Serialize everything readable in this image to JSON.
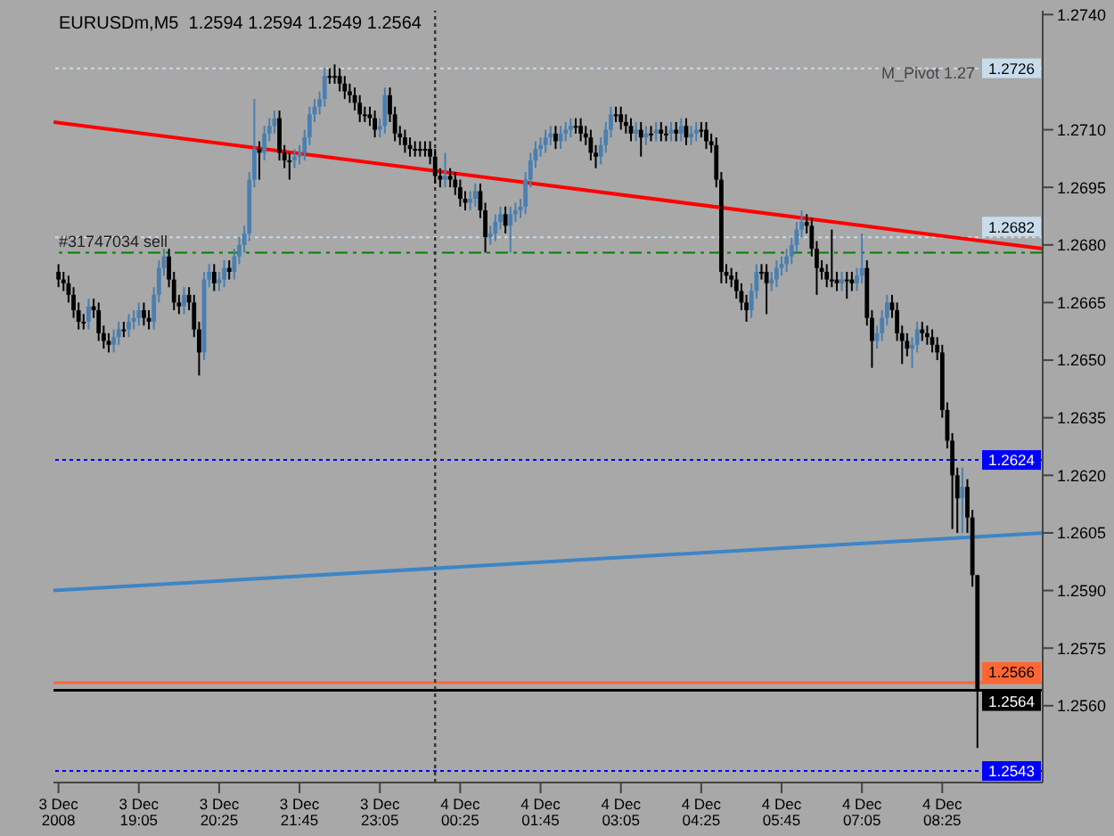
{
  "chart_data": {
    "type": "candlestick",
    "title": "EURUSDm,M5  1.2594 1.2594 1.2549 1.2564",
    "x": [
      "2008-12-03T17:45",
      "2008-12-03T17:50",
      "2008-12-03T17:55",
      "2008-12-03T18:00",
      "2008-12-03T18:05",
      "2008-12-03T18:10",
      "2008-12-03T18:15",
      "2008-12-03T18:20",
      "2008-12-03T18:25",
      "2008-12-03T18:30",
      "2008-12-03T18:35",
      "2008-12-03T18:40",
      "2008-12-03T18:45",
      "2008-12-03T18:50",
      "2008-12-03T18:55",
      "2008-12-03T19:00",
      "2008-12-03T19:05",
      "2008-12-03T19:10",
      "2008-12-03T19:15",
      "2008-12-03T19:20",
      "2008-12-03T19:25",
      "2008-12-03T19:30",
      "2008-12-03T19:35",
      "2008-12-03T19:40",
      "2008-12-03T19:45",
      "2008-12-03T19:50",
      "2008-12-03T19:55",
      "2008-12-03T20:00",
      "2008-12-03T20:05",
      "2008-12-03T20:10",
      "2008-12-03T20:15",
      "2008-12-03T20:20",
      "2008-12-03T20:25",
      "2008-12-03T20:30",
      "2008-12-03T20:35",
      "2008-12-03T20:40",
      "2008-12-03T20:45",
      "2008-12-03T20:50",
      "2008-12-03T20:55",
      "2008-12-03T21:00",
      "2008-12-03T21:05",
      "2008-12-03T21:10",
      "2008-12-03T21:15",
      "2008-12-03T21:20",
      "2008-12-03T21:25",
      "2008-12-03T21:30",
      "2008-12-03T21:35",
      "2008-12-03T21:40",
      "2008-12-03T21:45",
      "2008-12-03T21:50",
      "2008-12-03T21:55",
      "2008-12-03T22:00",
      "2008-12-03T22:05",
      "2008-12-03T22:10",
      "2008-12-03T22:15",
      "2008-12-03T22:20",
      "2008-12-03T22:25",
      "2008-12-03T22:30",
      "2008-12-03T22:35",
      "2008-12-03T22:40",
      "2008-12-03T22:45",
      "2008-12-03T22:50",
      "2008-12-03T22:55",
      "2008-12-03T23:00",
      "2008-12-03T23:05",
      "2008-12-03T23:10",
      "2008-12-03T23:15",
      "2008-12-03T23:20",
      "2008-12-03T23:25",
      "2008-12-03T23:30",
      "2008-12-03T23:35",
      "2008-12-03T23:40",
      "2008-12-03T23:45",
      "2008-12-03T23:50",
      "2008-12-03T23:55",
      "2008-12-04T00:00",
      "2008-12-04T00:05",
      "2008-12-04T00:10",
      "2008-12-04T00:15",
      "2008-12-04T00:20",
      "2008-12-04T00:25",
      "2008-12-04T00:30",
      "2008-12-04T00:35",
      "2008-12-04T00:40",
      "2008-12-04T00:45",
      "2008-12-04T00:50",
      "2008-12-04T00:55",
      "2008-12-04T01:00",
      "2008-12-04T01:05",
      "2008-12-04T01:10",
      "2008-12-04T01:15",
      "2008-12-04T01:20",
      "2008-12-04T01:25",
      "2008-12-04T01:30",
      "2008-12-04T01:35",
      "2008-12-04T01:40",
      "2008-12-04T01:45",
      "2008-12-04T01:50",
      "2008-12-04T01:55",
      "2008-12-04T02:00",
      "2008-12-04T02:05",
      "2008-12-04T02:10",
      "2008-12-04T02:15",
      "2008-12-04T02:20",
      "2008-12-04T02:25",
      "2008-12-04T02:30",
      "2008-12-04T02:35",
      "2008-12-04T02:40",
      "2008-12-04T02:45",
      "2008-12-04T02:50",
      "2008-12-04T02:55",
      "2008-12-04T03:00",
      "2008-12-04T03:05",
      "2008-12-04T03:10",
      "2008-12-04T03:15",
      "2008-12-04T03:20",
      "2008-12-04T03:25",
      "2008-12-04T03:30",
      "2008-12-04T03:35",
      "2008-12-04T03:40",
      "2008-12-04T03:45",
      "2008-12-04T03:50",
      "2008-12-04T03:55",
      "2008-12-04T04:00",
      "2008-12-04T04:05",
      "2008-12-04T04:10",
      "2008-12-04T04:15",
      "2008-12-04T04:20",
      "2008-12-04T04:25",
      "2008-12-04T04:30",
      "2008-12-04T04:35",
      "2008-12-04T04:40",
      "2008-12-04T04:45",
      "2008-12-04T04:50",
      "2008-12-04T04:55",
      "2008-12-04T05:00",
      "2008-12-04T05:05",
      "2008-12-04T05:10",
      "2008-12-04T05:15",
      "2008-12-04T05:20",
      "2008-12-04T05:25",
      "2008-12-04T05:30",
      "2008-12-04T05:35",
      "2008-12-04T05:40",
      "2008-12-04T05:45",
      "2008-12-04T05:50",
      "2008-12-04T05:55",
      "2008-12-04T06:00",
      "2008-12-04T06:05",
      "2008-12-04T06:10",
      "2008-12-04T06:15",
      "2008-12-04T06:20",
      "2008-12-04T06:25",
      "2008-12-04T06:30",
      "2008-12-04T06:35",
      "2008-12-04T06:40",
      "2008-12-04T06:45",
      "2008-12-04T06:50",
      "2008-12-04T06:55",
      "2008-12-04T07:00",
      "2008-12-04T07:05",
      "2008-12-04T07:10",
      "2008-12-04T07:15",
      "2008-12-04T07:20",
      "2008-12-04T07:25",
      "2008-12-04T07:30",
      "2008-12-04T07:35",
      "2008-12-04T07:40",
      "2008-12-04T07:45",
      "2008-12-04T07:50",
      "2008-12-04T07:55",
      "2008-12-04T08:00",
      "2008-12-04T08:05",
      "2008-12-04T08:10",
      "2008-12-04T08:15",
      "2008-12-04T08:20",
      "2008-12-04T08:25",
      "2008-12-04T08:30",
      "2008-12-04T08:35",
      "2008-12-04T08:40",
      "2008-12-04T08:45",
      "2008-12-04T08:50",
      "2008-12-04T08:55",
      "2008-12-04T09:00"
    ],
    "ohlc": [
      [
        1.2673,
        1.2675,
        1.2669,
        1.2671
      ],
      [
        1.2671,
        1.2673,
        1.2668,
        1.267
      ],
      [
        1.267,
        1.2672,
        1.2665,
        1.2667
      ],
      [
        1.2667,
        1.2669,
        1.2661,
        1.2663
      ],
      [
        1.2663,
        1.2665,
        1.2658,
        1.266
      ],
      [
        1.266,
        1.2662,
        1.2658,
        1.266
      ],
      [
        1.266,
        1.2666,
        1.2658,
        1.2664
      ],
      [
        1.2664,
        1.2666,
        1.2661,
        1.2663
      ],
      [
        1.2663,
        1.2665,
        1.2655,
        1.2657
      ],
      [
        1.2657,
        1.2659,
        1.2653,
        1.2655
      ],
      [
        1.2655,
        1.2657,
        1.2652,
        1.2654
      ],
      [
        1.2654,
        1.2658,
        1.2652,
        1.2656
      ],
      [
        1.2656,
        1.266,
        1.2654,
        1.2658
      ],
      [
        1.2658,
        1.266,
        1.2656,
        1.2658
      ],
      [
        1.2658,
        1.2662,
        1.2656,
        1.266
      ],
      [
        1.266,
        1.2663,
        1.2658,
        1.2661
      ],
      [
        1.2661,
        1.2665,
        1.2659,
        1.2663
      ],
      [
        1.2663,
        1.2665,
        1.2659,
        1.2661
      ],
      [
        1.2661,
        1.2663,
        1.2658,
        1.266
      ],
      [
        1.266,
        1.2669,
        1.2658,
        1.2667
      ],
      [
        1.2667,
        1.2676,
        1.2665,
        1.2674
      ],
      [
        1.2674,
        1.2679,
        1.2672,
        1.2677
      ],
      [
        1.2677,
        1.2679,
        1.2669,
        1.2671
      ],
      [
        1.2671,
        1.2673,
        1.2663,
        1.2665
      ],
      [
        1.2665,
        1.2667,
        1.2662,
        1.2664
      ],
      [
        1.2664,
        1.2669,
        1.2662,
        1.2667
      ],
      [
        1.2667,
        1.2669,
        1.2663,
        1.2665
      ],
      [
        1.2665,
        1.2667,
        1.2656,
        1.2658
      ],
      [
        1.2658,
        1.266,
        1.2646,
        1.2652
      ],
      [
        1.2652,
        1.2673,
        1.265,
        1.2671
      ],
      [
        1.2671,
        1.2675,
        1.2669,
        1.2673
      ],
      [
        1.2673,
        1.2675,
        1.2668,
        1.267
      ],
      [
        1.267,
        1.2673,
        1.2668,
        1.2671
      ],
      [
        1.2671,
        1.2676,
        1.2669,
        1.2674
      ],
      [
        1.2674,
        1.2676,
        1.2671,
        1.2673
      ],
      [
        1.2673,
        1.2679,
        1.2671,
        1.2677
      ],
      [
        1.2677,
        1.2682,
        1.2675,
        1.268
      ],
      [
        1.268,
        1.2685,
        1.2678,
        1.2683
      ],
      [
        1.2683,
        1.2699,
        1.2681,
        1.2697
      ],
      [
        1.2697,
        1.2718,
        1.2695,
        1.2705
      ],
      [
        1.2705,
        1.2707,
        1.2697,
        1.2704
      ],
      [
        1.2704,
        1.2711,
        1.2702,
        1.2709
      ],
      [
        1.2709,
        1.2713,
        1.2707,
        1.2711
      ],
      [
        1.2711,
        1.2715,
        1.2709,
        1.2713
      ],
      [
        1.2713,
        1.2715,
        1.2702,
        1.2704
      ],
      [
        1.2704,
        1.2706,
        1.27,
        1.2702
      ],
      [
        1.2702,
        1.2704,
        1.2697,
        1.2702
      ],
      [
        1.2702,
        1.2705,
        1.27,
        1.2703
      ],
      [
        1.2703,
        1.2706,
        1.2701,
        1.2704
      ],
      [
        1.2704,
        1.271,
        1.2702,
        1.2708
      ],
      [
        1.2708,
        1.2716,
        1.2706,
        1.2714
      ],
      [
        1.2714,
        1.2718,
        1.2712,
        1.2716
      ],
      [
        1.2716,
        1.272,
        1.2714,
        1.2718
      ],
      [
        1.2718,
        1.2726,
        1.2716,
        1.2724
      ],
      [
        1.2724,
        1.2726,
        1.2722,
        1.2724
      ],
      [
        1.2724,
        1.2727,
        1.2722,
        1.2724
      ],
      [
        1.2724,
        1.2726,
        1.272,
        1.2722
      ],
      [
        1.2722,
        1.2724,
        1.2718,
        1.272
      ],
      [
        1.272,
        1.2722,
        1.2717,
        1.2719
      ],
      [
        1.2719,
        1.2721,
        1.2715,
        1.2717
      ],
      [
        1.2717,
        1.2719,
        1.2712,
        1.2714
      ],
      [
        1.2714,
        1.2716,
        1.2712,
        1.2714
      ],
      [
        1.2714,
        1.2716,
        1.2711,
        1.2713
      ],
      [
        1.2713,
        1.2715,
        1.2708,
        1.271
      ],
      [
        1.271,
        1.2713,
        1.2708,
        1.2711
      ],
      [
        1.2711,
        1.2721,
        1.2709,
        1.2719
      ],
      [
        1.2719,
        1.2721,
        1.2712,
        1.2714
      ],
      [
        1.2714,
        1.2716,
        1.2707,
        1.2709
      ],
      [
        1.2709,
        1.2711,
        1.2706,
        1.2708
      ],
      [
        1.2708,
        1.271,
        1.2704,
        1.2706
      ],
      [
        1.2706,
        1.2708,
        1.2703,
        1.2705
      ],
      [
        1.2705,
        1.2707,
        1.2703,
        1.2705
      ],
      [
        1.2705,
        1.2707,
        1.2703,
        1.2705
      ],
      [
        1.2705,
        1.2707,
        1.2703,
        1.2705
      ],
      [
        1.2705,
        1.2707,
        1.2701,
        1.2703
      ],
      [
        1.2703,
        1.2705,
        1.2696,
        1.2698
      ],
      [
        1.2698,
        1.27,
        1.2695,
        1.2697
      ],
      [
        1.2697,
        1.2704,
        1.2695,
        1.2698
      ],
      [
        1.2698,
        1.27,
        1.2695,
        1.2697
      ],
      [
        1.2697,
        1.2699,
        1.2693,
        1.2695
      ],
      [
        1.2695,
        1.2697,
        1.269,
        1.2692
      ],
      [
        1.2692,
        1.2694,
        1.2689,
        1.2691
      ],
      [
        1.2691,
        1.2694,
        1.2689,
        1.2692
      ],
      [
        1.2692,
        1.2696,
        1.269,
        1.2694
      ],
      [
        1.2694,
        1.2696,
        1.2687,
        1.2689
      ],
      [
        1.2689,
        1.2691,
        1.2678,
        1.2682
      ],
      [
        1.2682,
        1.2685,
        1.268,
        1.2683
      ],
      [
        1.2683,
        1.2688,
        1.2681,
        1.2686
      ],
      [
        1.2686,
        1.269,
        1.2684,
        1.2688
      ],
      [
        1.2688,
        1.269,
        1.2683,
        1.2685
      ],
      [
        1.2685,
        1.269,
        1.2678,
        1.2688
      ],
      [
        1.2688,
        1.2691,
        1.2686,
        1.2689
      ],
      [
        1.2689,
        1.2692,
        1.2687,
        1.269
      ],
      [
        1.269,
        1.2699,
        1.2688,
        1.2697
      ],
      [
        1.2697,
        1.2704,
        1.2695,
        1.2702
      ],
      [
        1.2702,
        1.2707,
        1.27,
        1.2705
      ],
      [
        1.2705,
        1.2708,
        1.2703,
        1.2706
      ],
      [
        1.2706,
        1.271,
        1.2704,
        1.2708
      ],
      [
        1.2708,
        1.2711,
        1.2706,
        1.2709
      ],
      [
        1.2709,
        1.2711,
        1.2705,
        1.2707
      ],
      [
        1.2707,
        1.2711,
        1.2705,
        1.2709
      ],
      [
        1.2709,
        1.2712,
        1.2707,
        1.271
      ],
      [
        1.271,
        1.2713,
        1.2708,
        1.2711
      ],
      [
        1.2711,
        1.2713,
        1.2709,
        1.2711
      ],
      [
        1.2711,
        1.2713,
        1.2707,
        1.2709
      ],
      [
        1.2709,
        1.2711,
        1.2706,
        1.2708
      ],
      [
        1.2708,
        1.271,
        1.2702,
        1.2704
      ],
      [
        1.2704,
        1.2706,
        1.27,
        1.2703
      ],
      [
        1.2703,
        1.2708,
        1.2701,
        1.2706
      ],
      [
        1.2706,
        1.2712,
        1.2704,
        1.271
      ],
      [
        1.271,
        1.2716,
        1.2708,
        1.2714
      ],
      [
        1.2714,
        1.2716,
        1.2712,
        1.2714
      ],
      [
        1.2714,
        1.2716,
        1.271,
        1.2712
      ],
      [
        1.2712,
        1.2714,
        1.2709,
        1.2711
      ],
      [
        1.2711,
        1.2713,
        1.2707,
        1.2709
      ],
      [
        1.2709,
        1.2712,
        1.2707,
        1.271
      ],
      [
        1.271,
        1.2712,
        1.2703,
        1.2708
      ],
      [
        1.2708,
        1.2711,
        1.2706,
        1.2709
      ],
      [
        1.2709,
        1.2711,
        1.2707,
        1.2709
      ],
      [
        1.2709,
        1.2712,
        1.2707,
        1.271
      ],
      [
        1.271,
        1.2712,
        1.2707,
        1.2709
      ],
      [
        1.2709,
        1.2711,
        1.2707,
        1.2709
      ],
      [
        1.2709,
        1.2712,
        1.2707,
        1.271
      ],
      [
        1.271,
        1.2712,
        1.2707,
        1.2709
      ],
      [
        1.2709,
        1.2713,
        1.2707,
        1.2711
      ],
      [
        1.2711,
        1.2713,
        1.2706,
        1.2708
      ],
      [
        1.2708,
        1.2711,
        1.2706,
        1.2709
      ],
      [
        1.2709,
        1.2712,
        1.2707,
        1.271
      ],
      [
        1.271,
        1.2712,
        1.2708,
        1.271
      ],
      [
        1.271,
        1.2712,
        1.2705,
        1.2707
      ],
      [
        1.2707,
        1.2709,
        1.2704,
        1.2706
      ],
      [
        1.2706,
        1.2708,
        1.2695,
        1.2697
      ],
      [
        1.2697,
        1.2699,
        1.267,
        1.2673
      ],
      [
        1.2673,
        1.2675,
        1.267,
        1.2672
      ],
      [
        1.2672,
        1.2674,
        1.2669,
        1.2671
      ],
      [
        1.2671,
        1.2673,
        1.2666,
        1.2668
      ],
      [
        1.2668,
        1.267,
        1.2663,
        1.2665
      ],
      [
        1.2665,
        1.2667,
        1.266,
        1.2663
      ],
      [
        1.2663,
        1.267,
        1.2661,
        1.2668
      ],
      [
        1.2668,
        1.2675,
        1.2666,
        1.2673
      ],
      [
        1.2673,
        1.2675,
        1.2671,
        1.2673
      ],
      [
        1.2673,
        1.2675,
        1.2662,
        1.267
      ],
      [
        1.267,
        1.2673,
        1.2668,
        1.2671
      ],
      [
        1.2671,
        1.2676,
        1.2669,
        1.2674
      ],
      [
        1.2674,
        1.2677,
        1.2672,
        1.2675
      ],
      [
        1.2675,
        1.2679,
        1.2673,
        1.2677
      ],
      [
        1.2677,
        1.2682,
        1.2675,
        1.268
      ],
      [
        1.268,
        1.2686,
        1.2678,
        1.2684
      ],
      [
        1.2684,
        1.2689,
        1.2682,
        1.2686
      ],
      [
        1.2686,
        1.2688,
        1.2683,
        1.2685
      ],
      [
        1.2685,
        1.2687,
        1.2677,
        1.2679
      ],
      [
        1.2679,
        1.2681,
        1.2667,
        1.2674
      ],
      [
        1.2674,
        1.2676,
        1.2671,
        1.2673
      ],
      [
        1.2673,
        1.2675,
        1.2669,
        1.2671
      ],
      [
        1.2671,
        1.2684,
        1.2669,
        1.2671
      ],
      [
        1.2671,
        1.2673,
        1.2668,
        1.267
      ],
      [
        1.267,
        1.2673,
        1.2668,
        1.2671
      ],
      [
        1.2671,
        1.2673,
        1.2666,
        1.2671
      ],
      [
        1.2671,
        1.2673,
        1.2668,
        1.267
      ],
      [
        1.267,
        1.2674,
        1.2668,
        1.2672
      ],
      [
        1.2672,
        1.2683,
        1.267,
        1.2674
      ],
      [
        1.2674,
        1.2676,
        1.2659,
        1.2661
      ],
      [
        1.2661,
        1.2663,
        1.2648,
        1.2655
      ],
      [
        1.2655,
        1.2659,
        1.2653,
        1.2657
      ],
      [
        1.2657,
        1.2663,
        1.2655,
        1.2661
      ],
      [
        1.2661,
        1.2667,
        1.2659,
        1.2665
      ],
      [
        1.2665,
        1.2667,
        1.2661,
        1.2663
      ],
      [
        1.2663,
        1.2665,
        1.2655,
        1.2657
      ],
      [
        1.2657,
        1.2659,
        1.2649,
        1.2655
      ],
      [
        1.2655,
        1.2657,
        1.2651,
        1.2653
      ],
      [
        1.2653,
        1.2656,
        1.2648,
        1.2654
      ],
      [
        1.2654,
        1.266,
        1.2652,
        1.2658
      ],
      [
        1.2658,
        1.266,
        1.2655,
        1.2657
      ],
      [
        1.2657,
        1.2659,
        1.2654,
        1.2656
      ],
      [
        1.2656,
        1.2658,
        1.2652,
        1.2654
      ],
      [
        1.2654,
        1.2656,
        1.265,
        1.2652
      ],
      [
        1.2652,
        1.2654,
        1.2635,
        1.2637
      ],
      [
        1.2637,
        1.2639,
        1.2627,
        1.2629
      ],
      [
        1.2629,
        1.2631,
        1.2606,
        1.262
      ],
      [
        1.262,
        1.2622,
        1.2605,
        1.2614
      ],
      [
        1.2614,
        1.2622,
        1.2605,
        1.2617
      ],
      [
        1.2617,
        1.2619,
        1.2605,
        1.2609
      ],
      [
        1.2609,
        1.2611,
        1.2591,
        1.2594
      ],
      [
        1.2594,
        1.2594,
        1.2549,
        1.2564
      ]
    ],
    "colors": [
      "#000000",
      "#000000",
      "#000000",
      "#000000",
      "#000000",
      "#000000",
      "#4a7fb0",
      "#000000",
      "#000000",
      "#000000",
      "#000000",
      "#4a7fb0",
      "#4a7fb0",
      "#000000",
      "#4a7fb0",
      "#4a7fb0",
      "#4a7fb0",
      "#000000",
      "#000000",
      "#4a7fb0",
      "#4a7fb0",
      "#4a7fb0",
      "#000000",
      "#000000",
      "#000000",
      "#4a7fb0",
      "#000000",
      "#000000",
      "#000000",
      "#4a7fb0",
      "#4a7fb0",
      "#000000",
      "#4a7fb0",
      "#4a7fb0",
      "#000000",
      "#4a7fb0",
      "#4a7fb0",
      "#4a7fb0",
      "#4a7fb0",
      "#4a7fb0",
      "#000000",
      "#4a7fb0",
      "#4a7fb0",
      "#4a7fb0",
      "#000000",
      "#000000",
      "#000000",
      "#4a7fb0",
      "#4a7fb0",
      "#4a7fb0",
      "#4a7fb0",
      "#4a7fb0",
      "#4a7fb0",
      "#4a7fb0",
      "#000000",
      "#000000",
      "#000000",
      "#000000",
      "#000000",
      "#000000",
      "#000000",
      "#000000",
      "#000000",
      "#000000",
      "#4a7fb0",
      "#4a7fb0",
      "#000000",
      "#000000",
      "#000000",
      "#000000",
      "#000000",
      "#000000",
      "#000000",
      "#000000",
      "#000000",
      "#000000",
      "#000000",
      "#4a7fb0",
      "#000000",
      "#000000",
      "#000000",
      "#000000",
      "#4a7fb0",
      "#4a7fb0",
      "#000000",
      "#000000",
      "#4a7fb0",
      "#4a7fb0",
      "#4a7fb0",
      "#000000",
      "#4a7fb0",
      "#4a7fb0",
      "#4a7fb0",
      "#4a7fb0",
      "#4a7fb0",
      "#4a7fb0",
      "#4a7fb0",
      "#4a7fb0",
      "#4a7fb0",
      "#000000",
      "#4a7fb0",
      "#4a7fb0",
      "#4a7fb0",
      "#000000",
      "#000000",
      "#000000",
      "#000000",
      "#000000",
      "#4a7fb0",
      "#4a7fb0",
      "#4a7fb0",
      "#000000",
      "#000000",
      "#000000",
      "#000000",
      "#4a7fb0",
      "#000000",
      "#4a7fb0",
      "#000000",
      "#4a7fb0",
      "#000000",
      "#000000",
      "#4a7fb0",
      "#000000",
      "#4a7fb0",
      "#000000",
      "#4a7fb0",
      "#4a7fb0",
      "#000000",
      "#000000",
      "#000000",
      "#000000",
      "#000000",
      "#000000",
      "#000000",
      "#000000",
      "#000000",
      "#000000",
      "#4a7fb0",
      "#4a7fb0",
      "#000000",
      "#000000",
      "#4a7fb0",
      "#4a7fb0",
      "#4a7fb0",
      "#4a7fb0",
      "#4a7fb0",
      "#4a7fb0",
      "#4a7fb0",
      "#000000",
      "#000000",
      "#000000",
      "#000000",
      "#000000",
      "#000000",
      "#000000",
      "#4a7fb0",
      "#000000",
      "#000000",
      "#4a7fb0",
      "#4a7fb0",
      "#000000",
      "#000000",
      "#4a7fb0",
      "#4a7fb0",
      "#4a7fb0",
      "#000000",
      "#000000",
      "#000000",
      "#000000",
      "#4a7fb0",
      "#4a7fb0",
      "#000000",
      "#000000",
      "#000000",
      "#000000",
      "#000000",
      "#000000",
      "#000000",
      "#000000",
      "#4a7fb0",
      "#000000",
      "#000000",
      "#000000"
    ],
    "series": [
      {
        "type": "line",
        "color": "#ff0000",
        "x": [
          "2008-12-03T17:40",
          "2008-12-04T10:05"
        ],
        "values": [
          1.2712,
          1.2679
        ]
      },
      {
        "type": "line",
        "color": "#3d85c6",
        "x": [
          "2008-12-03T17:40",
          "2008-12-04T10:05"
        ],
        "values": [
          1.259,
          1.2605
        ]
      }
    ],
    "xlim": [
      "2008-12-03T17:40",
      "2008-12-04T10:05"
    ],
    "xticks": [
      {
        "value": "2008-12-03T17:45",
        "label": "3 Dec 2008"
      },
      {
        "value": "2008-12-03T19:05",
        "label": "3 Dec 19:05"
      },
      {
        "value": "2008-12-03T20:25",
        "label": "3 Dec 20:25"
      },
      {
        "value": "2008-12-03T21:45",
        "label": "3 Dec 21:45"
      },
      {
        "value": "2008-12-03T23:05",
        "label": "3 Dec 23:05"
      },
      {
        "value": "2008-12-04T00:25",
        "label": "4 Dec 00:25"
      },
      {
        "value": "2008-12-04T01:45",
        "label": "4 Dec 01:45"
      },
      {
        "value": "2008-12-04T03:05",
        "label": "4 Dec 03:05"
      },
      {
        "value": "2008-12-04T04:25",
        "label": "4 Dec 04:25"
      },
      {
        "value": "2008-12-04T05:45",
        "label": "4 Dec 05:45"
      },
      {
        "value": "2008-12-04T07:05",
        "label": "4 Dec 07:05"
      },
      {
        "value": "2008-12-04T08:25",
        "label": "4 Dec 08:25"
      }
    ],
    "ylim": [
      1.254,
      1.2741
    ],
    "yticks": [
      {
        "value": 1.274,
        "label": "1.2740"
      },
      {
        "value": 1.271,
        "label": "1.2710"
      },
      {
        "value": 1.2695,
        "label": "1.2695"
      },
      {
        "value": 1.268,
        "label": "1.2680"
      },
      {
        "value": 1.2665,
        "label": "1.2665"
      },
      {
        "value": 1.265,
        "label": "1.2650"
      },
      {
        "value": 1.2635,
        "label": "1.2635"
      },
      {
        "value": 1.262,
        "label": "1.2620"
      },
      {
        "value": 1.2605,
        "label": "1.2605"
      },
      {
        "value": 1.259,
        "label": "1.2590"
      },
      {
        "value": 1.2575,
        "label": "1.2575"
      },
      {
        "value": 1.256,
        "label": "1.2560"
      }
    ],
    "ref_lines": [
      {
        "axis": "y",
        "value": 1.2726,
        "label": "1.2726",
        "color": "#c8dcec",
        "line_style": "dotted"
      },
      {
        "axis": "y",
        "value": 1.2682,
        "label": "1.2682",
        "color": "#c8dcec",
        "line_style": "dotted"
      },
      {
        "axis": "y",
        "value": 1.2678,
        "label": "#31747034 sell",
        "color": "#008000",
        "line_style": "dashed"
      },
      {
        "axis": "y",
        "value": 1.2624,
        "label": "1.2624",
        "color": "#0000ff",
        "line_style": "dotted"
      },
      {
        "axis": "y",
        "value": 1.2566,
        "label": "1.2566",
        "color": "#ff6633",
        "line_style": "solid"
      },
      {
        "axis": "y",
        "value": 1.2564,
        "label": "1.2564",
        "color": "#000000",
        "line_style": "solid"
      },
      {
        "axis": "y",
        "value": 1.2543,
        "label": "1.2543",
        "color": "#0000ff",
        "line_style": "dotted"
      },
      {
        "axis": "x",
        "value": "2008-12-04T00:00",
        "color": "#333333",
        "line_style": "dotted"
      }
    ],
    "annotations": [
      "M_Pivot 1.27"
    ]
  }
}
